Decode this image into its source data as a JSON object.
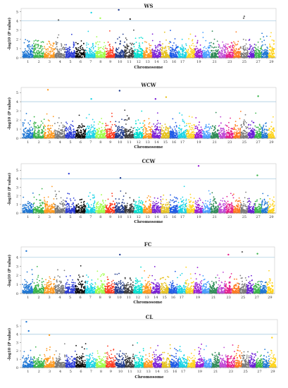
{
  "chart_data": [
    {
      "type": "scatter",
      "title": "WS",
      "xlabel": "Chromosome",
      "ylabel": "-log10 (P value)",
      "ylim": [
        0,
        5.2
      ],
      "yticks": [
        "0",
        "1",
        "2",
        "3",
        "4",
        "5"
      ],
      "threshold": 4.0,
      "chromosome_labels": [
        "1",
        "2",
        "3",
        "4",
        "5",
        "6",
        "7",
        "8",
        "9",
        "10",
        "11",
        "12",
        "13",
        "14",
        "15",
        "16",
        "17",
        "19",
        "21",
        "23",
        "25",
        "27",
        "29"
      ],
      "peaks": [
        {
          "chromosome": "4",
          "value": 4.1
        },
        {
          "chromosome": "7",
          "value": 4.9
        },
        {
          "chromosome": "8",
          "value": 4.3
        },
        {
          "chromosome": "10",
          "value": 5.2
        },
        {
          "chromosome": "11",
          "value": 4.2
        },
        {
          "chromosome": "25",
          "value": 4.5
        },
        {
          "chromosome": "25",
          "value": 4.3
        }
      ]
    },
    {
      "type": "scatter",
      "title": "WCW",
      "xlabel": "Chromosome",
      "ylabel": "-log10 (P value)",
      "ylim": [
        0,
        5.4
      ],
      "yticks": [
        "0",
        "1",
        "2",
        "3",
        "4",
        "5"
      ],
      "threshold": 4.0,
      "chromosome_labels": [
        "1",
        "2",
        "3",
        "4",
        "5",
        "6",
        "7",
        "8",
        "9",
        "10",
        "11",
        "12",
        "13",
        "14",
        "15",
        "16",
        "17",
        "19",
        "21",
        "23",
        "25",
        "27",
        "29"
      ],
      "peaks": [
        {
          "chromosome": "3",
          "value": 5.3
        },
        {
          "chromosome": "7",
          "value": 4.3
        },
        {
          "chromosome": "10",
          "value": 5.2
        },
        {
          "chromosome": "14",
          "value": 4.3
        },
        {
          "chromosome": "15",
          "value": 4.5
        },
        {
          "chromosome": "27",
          "value": 4.6
        }
      ]
    },
    {
      "type": "scatter",
      "title": "CCW",
      "xlabel": "Chromosome",
      "ylabel": "-log10 (P value)",
      "ylim": [
        0,
        5.6
      ],
      "yticks": [
        "0",
        "1",
        "2",
        "3",
        "4",
        "5"
      ],
      "threshold": 4.0,
      "chromosome_labels": [
        "1",
        "2",
        "3",
        "4",
        "5",
        "6",
        "7",
        "8",
        "9",
        "10",
        "11",
        "12",
        "13",
        "14",
        "15",
        "16",
        "17",
        "19",
        "21",
        "23",
        "25",
        "27",
        "29"
      ],
      "peaks": [
        {
          "chromosome": "5",
          "value": 4.6
        },
        {
          "chromosome": "10",
          "value": 4.1
        },
        {
          "chromosome": "19",
          "value": 5.5
        },
        {
          "chromosome": "27",
          "value": 4.4
        }
      ]
    },
    {
      "type": "scatter",
      "title": "FC",
      "xlabel": "Chromosome",
      "ylabel": "-log10 (P value)",
      "ylim": [
        0,
        5.0
      ],
      "yticks": [
        "0",
        "1",
        "2",
        "3",
        "4"
      ],
      "threshold": 4.0,
      "chromosome_labels": [
        "1",
        "2",
        "3",
        "4",
        "5",
        "6",
        "7",
        "8",
        "9",
        "10",
        "11",
        "12",
        "13",
        "14",
        "15",
        "16",
        "17",
        "19",
        "21",
        "23",
        "25",
        "27",
        "29"
      ],
      "peaks": [
        {
          "chromosome": "1",
          "value": 4.7
        },
        {
          "chromosome": "10",
          "value": 4.3
        },
        {
          "chromosome": "23",
          "value": 4.3
        },
        {
          "chromosome": "25",
          "value": 4.6
        },
        {
          "chromosome": "27",
          "value": 4.4
        }
      ]
    },
    {
      "type": "scatter",
      "title": "CL",
      "xlabel": "Chromosome",
      "ylabel": "-log10 (P value)",
      "ylim": [
        0,
        5.6
      ],
      "yticks": [
        "0",
        "1",
        "2",
        "3",
        "4",
        "5"
      ],
      "threshold": 4.0,
      "chromosome_labels": [
        "1",
        "2",
        "3",
        "4",
        "5",
        "6",
        "7",
        "8",
        "9",
        "10",
        "11",
        "12",
        "13",
        "14",
        "15",
        "16",
        "17",
        "19",
        "21",
        "23",
        "25",
        "27",
        "29"
      ],
      "peaks": [
        {
          "chromosome": "1",
          "value": 5.5
        },
        {
          "chromosome": "1",
          "value": 4.4
        },
        {
          "chromosome": "3",
          "value": 3.9
        },
        {
          "chromosome": "29",
          "value": 3.6
        }
      ]
    }
  ],
  "style": {
    "chromosome_colors": [
      "#1f77d4",
      "#39b54a",
      "#ff9a1f",
      "#7b7b7b",
      "#2a3bd6",
      "#0c0c0c",
      "#19d3e6",
      "#a0ff4a",
      "#ff3b1f",
      "#1f3a8f",
      "#3d3d3d",
      "#00e0d0",
      "#ff9a1f",
      "#7b1fd6",
      "#e6c21f",
      "#1f5ae6",
      "#19d3e6",
      "#ffd51f",
      "#9b1fd6",
      "#4aa0ff",
      "#2e8b57",
      "#c04ad6",
      "#e61f8c",
      "#ff7a1f",
      "#7b7b7b",
      "#6a1fd6",
      "#39b54a",
      "#1f77d4",
      "#ffd51f"
    ],
    "threshold_color": "#9cc4dc",
    "panel_border_color": "#c8c8c8"
  }
}
